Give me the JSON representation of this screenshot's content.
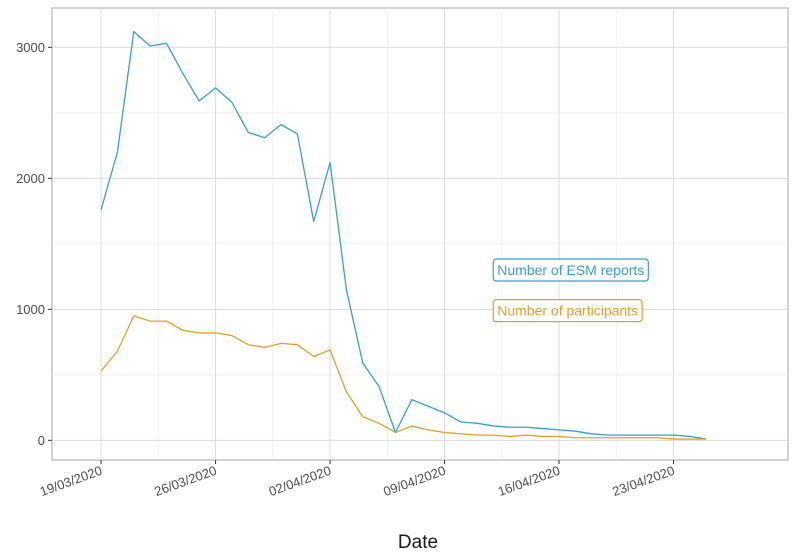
{
  "chart_data": {
    "type": "line",
    "xlabel": "Date",
    "ylabel": "",
    "ylim": [
      -150,
      3300
    ],
    "yticks": [
      0,
      1000,
      2000,
      3000
    ],
    "x_range": [
      "2020-03-16",
      "2020-04-30"
    ],
    "xticks": [
      {
        "date": "2020-03-19",
        "label": "19/03/2020"
      },
      {
        "date": "2020-03-26",
        "label": "26/03/2020"
      },
      {
        "date": "2020-04-02",
        "label": "02/04/2020"
      },
      {
        "date": "2020-04-09",
        "label": "09/04/2020"
      },
      {
        "date": "2020-04-16",
        "label": "16/04/2020"
      },
      {
        "date": "2020-04-23",
        "label": "23/04/2020"
      }
    ],
    "x": [
      "2020-03-19",
      "2020-03-20",
      "2020-03-21",
      "2020-03-22",
      "2020-03-23",
      "2020-03-24",
      "2020-03-25",
      "2020-03-26",
      "2020-03-27",
      "2020-03-28",
      "2020-03-29",
      "2020-03-30",
      "2020-03-31",
      "2020-04-01",
      "2020-04-02",
      "2020-04-03",
      "2020-04-04",
      "2020-04-05",
      "2020-04-06",
      "2020-04-07",
      "2020-04-08",
      "2020-04-09",
      "2020-04-10",
      "2020-04-11",
      "2020-04-12",
      "2020-04-13",
      "2020-04-14",
      "2020-04-15",
      "2020-04-16",
      "2020-04-17",
      "2020-04-18",
      "2020-04-19",
      "2020-04-20",
      "2020-04-21",
      "2020-04-22",
      "2020-04-23",
      "2020-04-24",
      "2020-04-25"
    ],
    "series": [
      {
        "name": "Number of ESM reports",
        "color": "#3a9fcc",
        "values": [
          1760,
          2200,
          3120,
          3010,
          3030,
          2800,
          2590,
          2690,
          2580,
          2350,
          2310,
          2410,
          2340,
          1670,
          2120,
          1150,
          590,
          410,
          60,
          310,
          260,
          210,
          140,
          130,
          110,
          100,
          100,
          90,
          80,
          70,
          50,
          40,
          40,
          40,
          40,
          40,
          30,
          10
        ]
      },
      {
        "name": "Number of participants",
        "color": "#e0a030",
        "values": [
          530,
          680,
          950,
          910,
          910,
          840,
          820,
          820,
          800,
          730,
          710,
          740,
          730,
          640,
          690,
          370,
          180,
          130,
          60,
          110,
          80,
          60,
          50,
          40,
          40,
          30,
          40,
          30,
          30,
          20,
          20,
          20,
          20,
          20,
          20,
          10,
          10,
          10
        ]
      }
    ],
    "legend": [
      {
        "label": "Number of ESM reports",
        "color": "#3a9fcc",
        "anchor_date": "2020-04-11",
        "anchor_value": 1300
      },
      {
        "label": "Number of participants",
        "color": "#e0a030",
        "anchor_date": "2020-04-11",
        "anchor_value": 990
      }
    ],
    "grid": true
  }
}
